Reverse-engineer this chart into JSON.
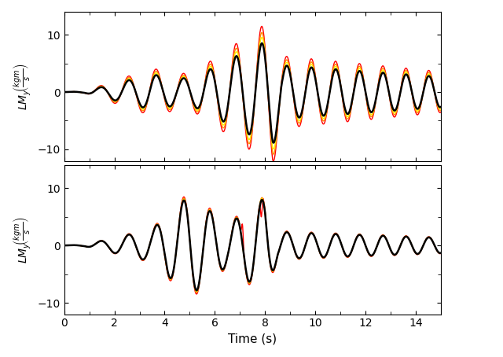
{
  "xlabel": "Time (s)",
  "ylim": [
    -12,
    14
  ],
  "xlim": [
    0,
    15
  ],
  "xticks": [
    0,
    2,
    4,
    6,
    8,
    10,
    12,
    14
  ],
  "yticks": [
    -10,
    0,
    10
  ],
  "black_lw": 1.8,
  "red_lw": 1.0,
  "orange_lw": 1.0,
  "yellow_lw": 1.0,
  "background": "#ffffff",
  "colors": {
    "black": "#000000",
    "red": "#ff0000",
    "orange": "#ff8c00",
    "yellow": "#ffee00"
  },
  "top_spread_red": 1.35,
  "top_spread_orange": 1.22,
  "top_spread_yellow": 1.12,
  "bottom_spread_red": 1.08,
  "bottom_spread_orange": 1.05,
  "bottom_spread_yellow": 1.025
}
